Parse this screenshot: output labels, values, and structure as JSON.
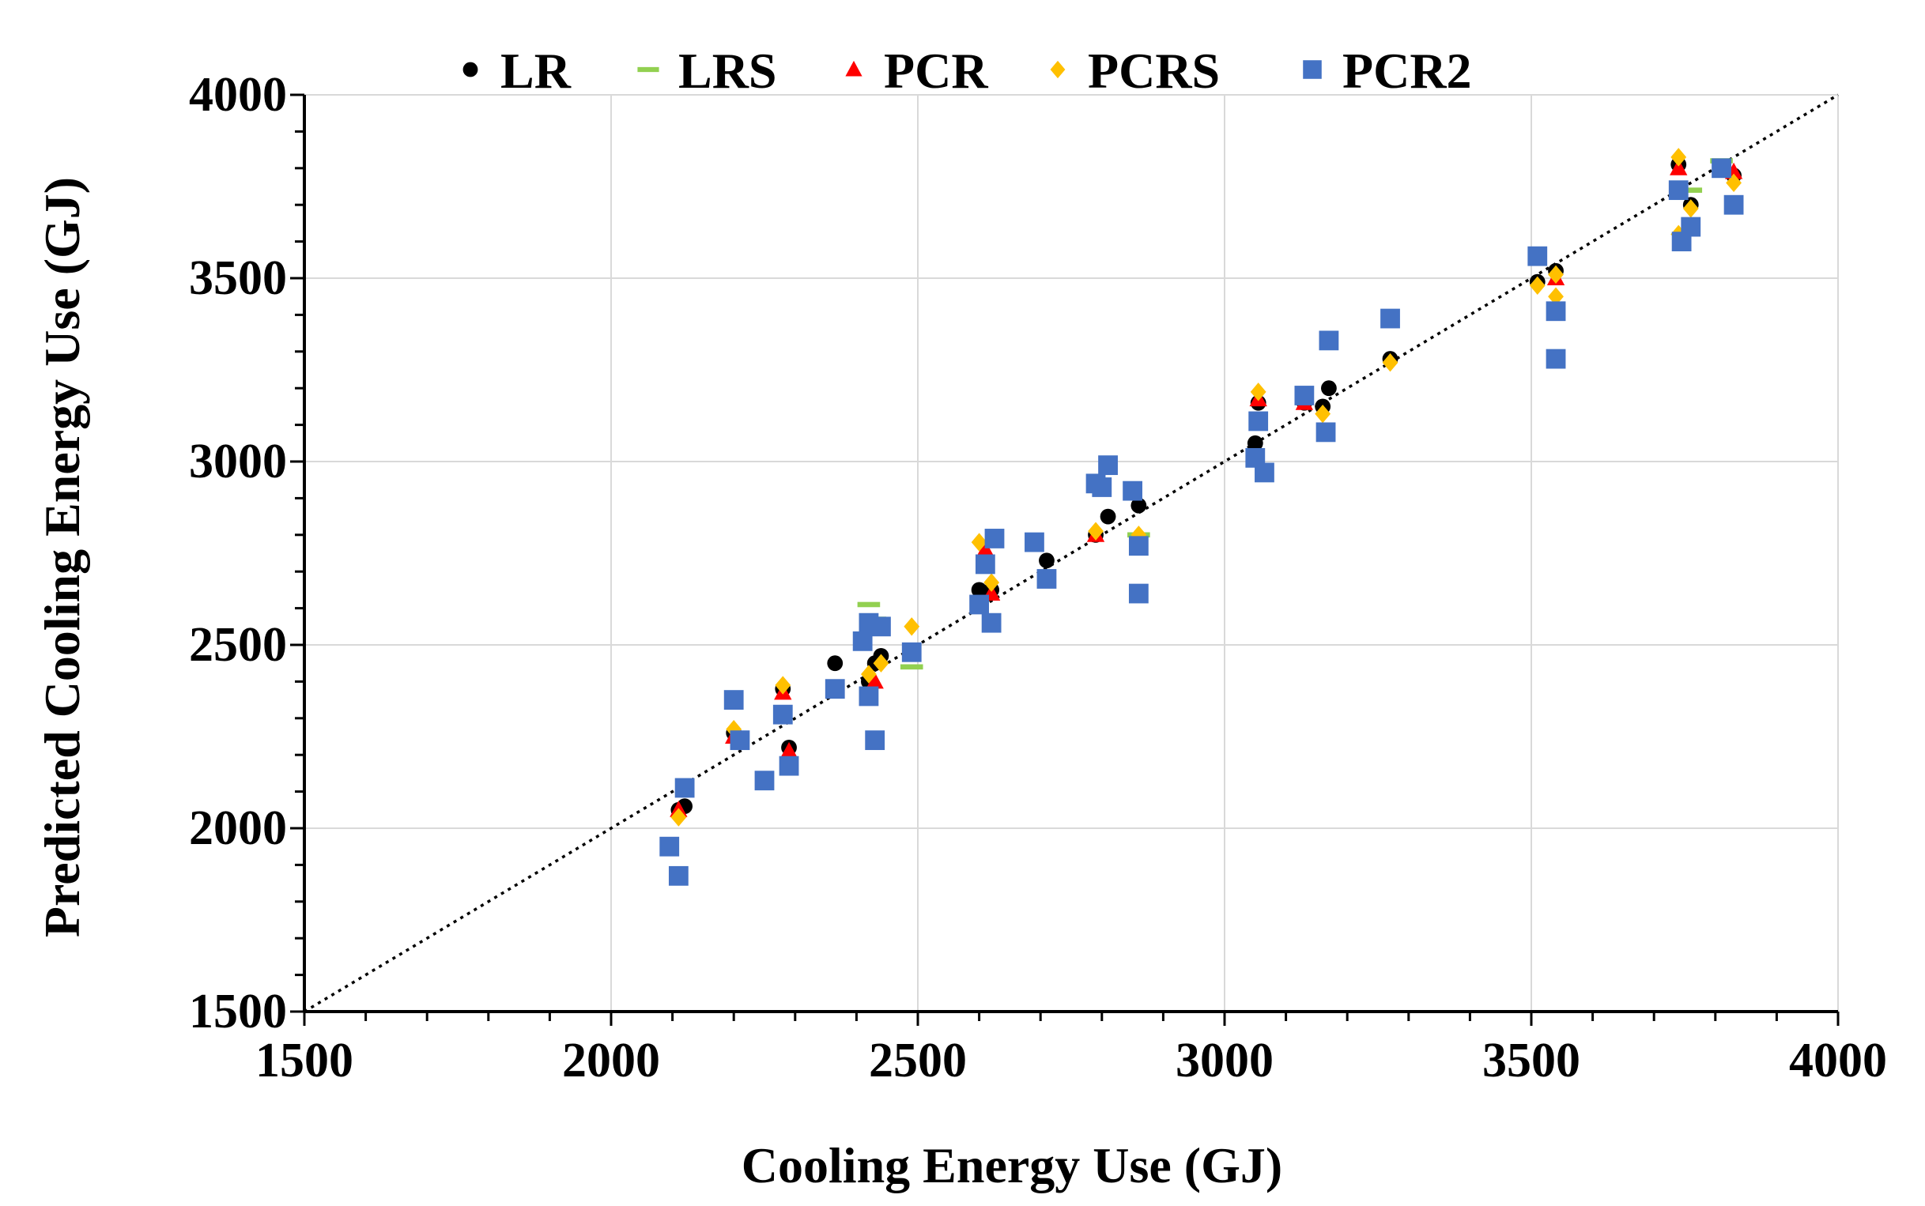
{
  "chart_data": {
    "type": "scatter",
    "title": "",
    "xlabel": "Cooling Energy Use (GJ)",
    "ylabel": "Predicted Cooling Energy Use (GJ)",
    "xlim": [
      1500,
      4000
    ],
    "ylim": [
      1500,
      4000
    ],
    "xticks": [
      1500,
      2000,
      2500,
      3000,
      3500,
      4000
    ],
    "yticks": [
      1500,
      2000,
      2500,
      3000,
      3500,
      4000
    ],
    "grid": true,
    "legend_position": "top",
    "reference_line": {
      "name": "1:1 line",
      "from": [
        1500,
        1500
      ],
      "to": [
        4000,
        4000
      ]
    },
    "series": [
      {
        "name": "LR",
        "marker": "circle",
        "color": "#000000",
        "points": [
          [
            2110,
            2050
          ],
          [
            2120,
            2060
          ],
          [
            2200,
            2260
          ],
          [
            2280,
            2380
          ],
          [
            2290,
            2220
          ],
          [
            2365,
            2450
          ],
          [
            2420,
            2400
          ],
          [
            2430,
            2450
          ],
          [
            2440,
            2470
          ],
          [
            2600,
            2650
          ],
          [
            2610,
            2740
          ],
          [
            2620,
            2650
          ],
          [
            2710,
            2730
          ],
          [
            2790,
            2800
          ],
          [
            2810,
            2850
          ],
          [
            2860,
            2880
          ],
          [
            3050,
            3050
          ],
          [
            3055,
            3160
          ],
          [
            3130,
            3160
          ],
          [
            3160,
            3150
          ],
          [
            3170,
            3200
          ],
          [
            3270,
            3280
          ],
          [
            3510,
            3490
          ],
          [
            3540,
            3520
          ],
          [
            3740,
            3810
          ],
          [
            3760,
            3700
          ],
          [
            3830,
            3780
          ]
        ]
      },
      {
        "name": "LRS",
        "marker": "dash",
        "color": "#92d050",
        "points": [
          [
            2420,
            2610
          ],
          [
            2430,
            2570
          ],
          [
            2490,
            2440
          ],
          [
            2860,
            2800
          ],
          [
            3810,
            3820
          ],
          [
            3760,
            3740
          ]
        ]
      },
      {
        "name": "PCR",
        "marker": "triangle",
        "color": "#ff0000",
        "points": [
          [
            2110,
            2050
          ],
          [
            2200,
            2250
          ],
          [
            2250,
            2130
          ],
          [
            2280,
            2370
          ],
          [
            2290,
            2210
          ],
          [
            2430,
            2400
          ],
          [
            2610,
            2760
          ],
          [
            2620,
            2640
          ],
          [
            2790,
            2800
          ],
          [
            3055,
            3170
          ],
          [
            3130,
            3160
          ],
          [
            3540,
            3500
          ],
          [
            3740,
            3800
          ],
          [
            3830,
            3790
          ]
        ]
      },
      {
        "name": "PCRS",
        "marker": "diamond",
        "color": "#ffc000",
        "points": [
          [
            2110,
            2030
          ],
          [
            2200,
            2270
          ],
          [
            2280,
            2390
          ],
          [
            2420,
            2420
          ],
          [
            2440,
            2450
          ],
          [
            2490,
            2550
          ],
          [
            2600,
            2780
          ],
          [
            2620,
            2670
          ],
          [
            2790,
            2810
          ],
          [
            2860,
            2800
          ],
          [
            3055,
            3190
          ],
          [
            3160,
            3130
          ],
          [
            3270,
            3270
          ],
          [
            3510,
            3480
          ],
          [
            3540,
            3450
          ],
          [
            3540,
            3510
          ],
          [
            3740,
            3830
          ],
          [
            3760,
            3690
          ],
          [
            3830,
            3760
          ],
          [
            3740,
            3620
          ]
        ]
      },
      {
        "name": "PCR2",
        "marker": "square",
        "color": "#4472c4",
        "points": [
          [
            2095,
            1950
          ],
          [
            2110,
            1870
          ],
          [
            2120,
            2110
          ],
          [
            2200,
            2350
          ],
          [
            2210,
            2240
          ],
          [
            2250,
            2130
          ],
          [
            2280,
            2310
          ],
          [
            2290,
            2170
          ],
          [
            2365,
            2380
          ],
          [
            2420,
            2360
          ],
          [
            2420,
            2560
          ],
          [
            2430,
            2240
          ],
          [
            2410,
            2510
          ],
          [
            2440,
            2550
          ],
          [
            2490,
            2480
          ],
          [
            2600,
            2610
          ],
          [
            2610,
            2720
          ],
          [
            2620,
            2560
          ],
          [
            2625,
            2790
          ],
          [
            2690,
            2780
          ],
          [
            2710,
            2680
          ],
          [
            2790,
            2940
          ],
          [
            2800,
            2930
          ],
          [
            2810,
            2990
          ],
          [
            2850,
            2920
          ],
          [
            2860,
            2770
          ],
          [
            2860,
            2640
          ],
          [
            3050,
            3010
          ],
          [
            3055,
            3110
          ],
          [
            3065,
            2970
          ],
          [
            3130,
            3180
          ],
          [
            3165,
            3080
          ],
          [
            3170,
            3330
          ],
          [
            3270,
            3390
          ],
          [
            3510,
            3560
          ],
          [
            3540,
            3410
          ],
          [
            3540,
            3280
          ],
          [
            3740,
            3740
          ],
          [
            3745,
            3600
          ],
          [
            3760,
            3640
          ],
          [
            3810,
            3800
          ],
          [
            3830,
            3700
          ]
        ]
      }
    ]
  }
}
